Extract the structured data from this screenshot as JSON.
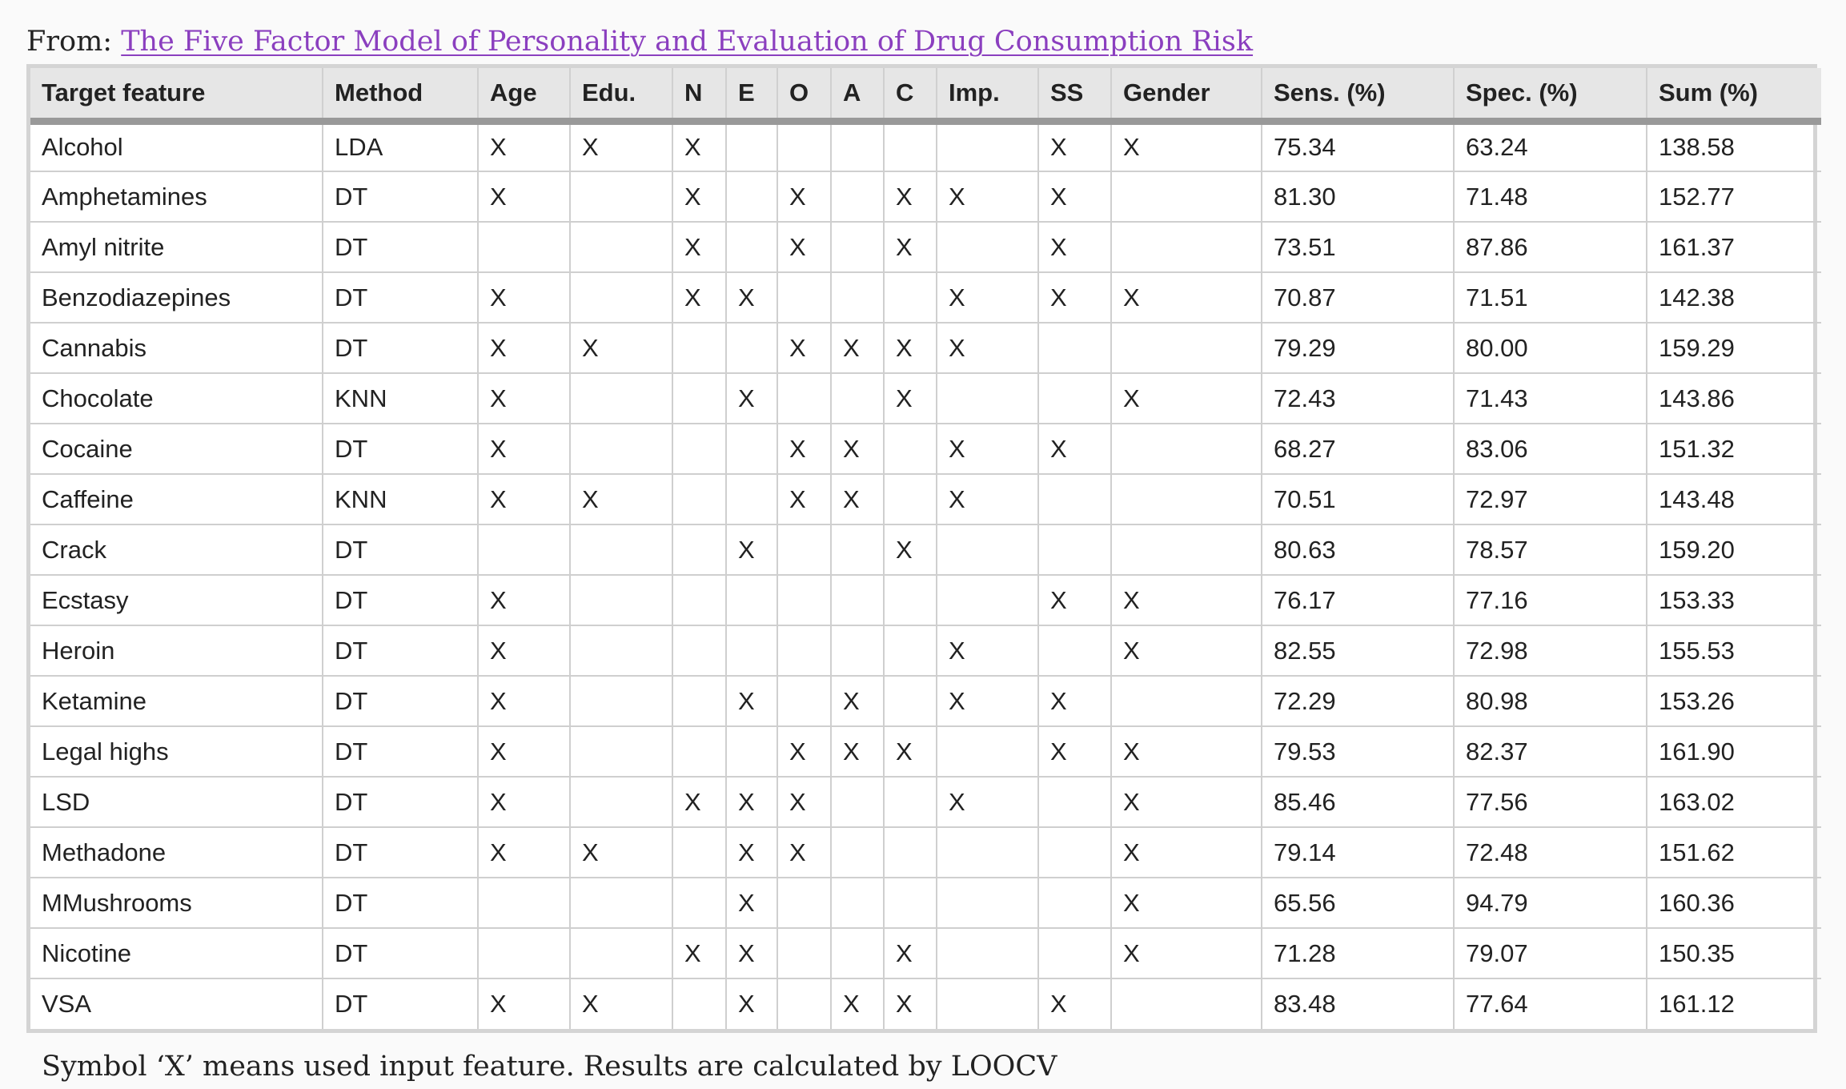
{
  "source": {
    "prefix": "From: ",
    "link_text": "The Five Factor Model of Personality and Evaluation of Drug Consumption Risk"
  },
  "table": {
    "headers": [
      "Target feature",
      "Method",
      "Age",
      "Edu.",
      "N",
      "E",
      "O",
      "A",
      "C",
      "Imp.",
      "SS",
      "Gender",
      "Sens. (%)",
      "Spec. (%)",
      "Sum (%)"
    ],
    "rows": [
      [
        "Alcohol",
        "LDA",
        "X",
        "X",
        "X",
        "",
        "",
        "",
        "",
        "",
        "X",
        "X",
        "75.34",
        "63.24",
        "138.58"
      ],
      [
        "Amphetamines",
        "DT",
        "X",
        "",
        "X",
        "",
        "X",
        "",
        "X",
        "X",
        "X",
        "",
        "81.30",
        "71.48",
        "152.77"
      ],
      [
        "Amyl nitrite",
        "DT",
        "",
        "",
        "X",
        "",
        "X",
        "",
        "X",
        "",
        "X",
        "",
        "73.51",
        "87.86",
        "161.37"
      ],
      [
        "Benzodiazepines",
        "DT",
        "X",
        "",
        "X",
        "X",
        "",
        "",
        "",
        "X",
        "X",
        "X",
        "70.87",
        "71.51",
        "142.38"
      ],
      [
        "Cannabis",
        "DT",
        "X",
        "X",
        "",
        "",
        "X",
        "X",
        "X",
        "X",
        "",
        "",
        "79.29",
        "80.00",
        "159.29"
      ],
      [
        "Chocolate",
        "KNN",
        "X",
        "",
        "",
        "X",
        "",
        "",
        "X",
        "",
        "",
        "X",
        "72.43",
        "71.43",
        "143.86"
      ],
      [
        "Cocaine",
        "DT",
        "X",
        "",
        "",
        "",
        "X",
        "X",
        "",
        "X",
        "X",
        "",
        "68.27",
        "83.06",
        "151.32"
      ],
      [
        "Caffeine",
        "KNN",
        "X",
        "X",
        "",
        "",
        "X",
        "X",
        "",
        "X",
        "",
        "",
        "70.51",
        "72.97",
        "143.48"
      ],
      [
        "Crack",
        "DT",
        "",
        "",
        "",
        "X",
        "",
        "",
        "X",
        "",
        "",
        "",
        "80.63",
        "78.57",
        "159.20"
      ],
      [
        "Ecstasy",
        "DT",
        "X",
        "",
        "",
        "",
        "",
        "",
        "",
        "",
        "X",
        "X",
        "76.17",
        "77.16",
        "153.33"
      ],
      [
        "Heroin",
        "DT",
        "X",
        "",
        "",
        "",
        "",
        "",
        "",
        "X",
        "",
        "X",
        "82.55",
        "72.98",
        "155.53"
      ],
      [
        "Ketamine",
        "DT",
        "X",
        "",
        "",
        "X",
        "",
        "X",
        "",
        "X",
        "X",
        "",
        "72.29",
        "80.98",
        "153.26"
      ],
      [
        "Legal highs",
        "DT",
        "X",
        "",
        "",
        "",
        "X",
        "X",
        "X",
        "",
        "X",
        "X",
        "79.53",
        "82.37",
        "161.90"
      ],
      [
        "LSD",
        "DT",
        "X",
        "",
        "X",
        "X",
        "X",
        "",
        "",
        "X",
        "",
        "X",
        "85.46",
        "77.56",
        "163.02"
      ],
      [
        "Methadone",
        "DT",
        "X",
        "X",
        "",
        "X",
        "X",
        "",
        "",
        "",
        "",
        "X",
        "79.14",
        "72.48",
        "151.62"
      ],
      [
        "MMushrooms",
        "DT",
        "",
        "",
        "",
        "X",
        "",
        "",
        "",
        "",
        "",
        "X",
        "65.56",
        "94.79",
        "160.36"
      ],
      [
        "Nicotine",
        "DT",
        "",
        "",
        "X",
        "X",
        "",
        "",
        "X",
        "",
        "",
        "X",
        "71.28",
        "79.07",
        "150.35"
      ],
      [
        "VSA",
        "DT",
        "X",
        "X",
        "",
        "X",
        "",
        "X",
        "X",
        "",
        "X",
        "",
        "83.48",
        "77.64",
        "161.12"
      ]
    ]
  },
  "footnote": "Symbol ‘X’ means used input feature. Results are calculated by LOOCV"
}
